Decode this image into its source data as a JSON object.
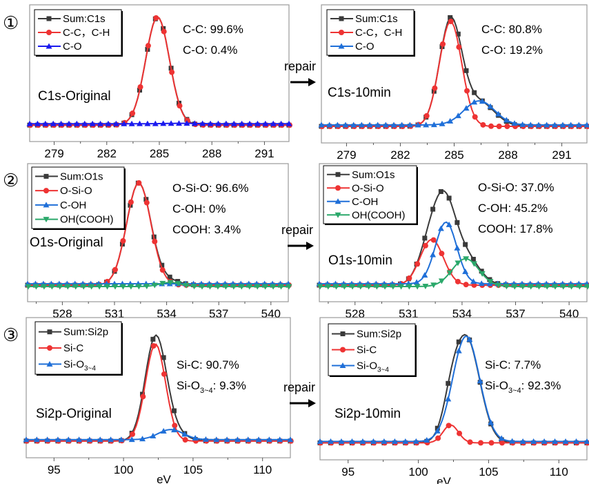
{
  "figure": {
    "arrow_label": "repair",
    "xlabel": "eV",
    "colors": {
      "sum": "#3a3a3a",
      "red": "#ee3333",
      "blue_c1s": "#1a1aee",
      "blue": "#1f6fd8",
      "green": "#2aa86a",
      "frame": "#9a9a9a"
    }
  },
  "chart_data": [
    {
      "id": "c1s-original",
      "row_marker": "①",
      "type": "line",
      "title": "C1s-Original",
      "xlim": [
        277.6,
        292.4
      ],
      "xticks": [
        279,
        282,
        285,
        288,
        291
      ],
      "annotations": [
        "C-C: 99.6%",
        "C-O: 0.4%"
      ],
      "series": [
        {
          "name": "Sum:C1s",
          "marker": "square",
          "color": "sum",
          "peaks": [
            [
              284.9,
              1.0,
              0.68
            ],
            [
              286.3,
              0.004,
              0.8
            ]
          ]
        },
        {
          "name": "C-C，C-H",
          "marker": "circle",
          "color": "red",
          "peaks": [
            [
              284.9,
              1.0,
              0.68
            ]
          ]
        },
        {
          "name": "C-O",
          "marker": "triangle-up",
          "color": "blue_c1s",
          "peaks": [
            [
              286.3,
              0.004,
              0.8
            ]
          ]
        }
      ]
    },
    {
      "id": "c1s-10min",
      "row_marker": "",
      "type": "line",
      "title": "C1s-10min",
      "xlim": [
        277.6,
        292.4
      ],
      "xticks": [
        279,
        282,
        285,
        288,
        291
      ],
      "annotations": [
        "C-C: 80.8%",
        "C-O: 19.2%"
      ],
      "series": [
        {
          "name": "Sum:C1s",
          "marker": "square",
          "color": "sum",
          "peaks": [
            [
              284.8,
              1.0,
              0.62
            ],
            [
              286.4,
              0.23,
              0.85
            ]
          ]
        },
        {
          "name": "C-C，C-H",
          "marker": "circle",
          "color": "red",
          "peaks": [
            [
              284.8,
              1.0,
              0.62
            ]
          ]
        },
        {
          "name": "C-O",
          "marker": "triangle-up",
          "color": "blue",
          "peaks": [
            [
              286.4,
              0.23,
              0.85
            ]
          ]
        }
      ]
    },
    {
      "id": "o1s-original",
      "row_marker": "②",
      "type": "line",
      "title": "O1s-Original",
      "xlim": [
        526.0,
        541.0
      ],
      "xticks": [
        528,
        531,
        534,
        537,
        540
      ],
      "annotations": [
        "O-Si-O: 96.6%",
        "C-OH:   0%",
        "COOH:  3.4%"
      ],
      "series": [
        {
          "name": "Sum:O1s",
          "marker": "square",
          "color": "sum",
          "peaks": [
            [
              532.4,
              1.0,
              0.7
            ],
            [
              534.2,
              0.04,
              0.6
            ]
          ]
        },
        {
          "name": "O-Si-O",
          "marker": "circle",
          "color": "red",
          "peaks": [
            [
              532.4,
              1.0,
              0.7
            ]
          ]
        },
        {
          "name": "C-OH",
          "marker": "triangle-up",
          "color": "blue",
          "peaks": [
            [
              534.1,
              0.0,
              0.5
            ]
          ]
        },
        {
          "name": "OH(COOH)",
          "marker": "triangle-down",
          "color": "green",
          "peaks": [
            [
              534.2,
              0.04,
              0.6
            ]
          ]
        }
      ]
    },
    {
      "id": "o1s-10min",
      "row_marker": "",
      "type": "line",
      "title": "O1s-10min",
      "xlim": [
        526.0,
        541.0
      ],
      "xticks": [
        528,
        531,
        534,
        537,
        540
      ],
      "annotations": [
        "O-Si-O: 37.0%",
        "C-OH:   45.2%",
        "COOH:  17.8%"
      ],
      "series": [
        {
          "name": "Sum:O1s",
          "marker": "square",
          "color": "sum",
          "peaks": [
            [
              532.3,
              0.46,
              0.65
            ],
            [
              533.1,
              0.62,
              0.6
            ],
            [
              534.2,
              0.28,
              0.75
            ]
          ]
        },
        {
          "name": "O-Si-O",
          "marker": "circle",
          "color": "red",
          "peaks": [
            [
              532.3,
              0.46,
              0.65
            ]
          ]
        },
        {
          "name": "C-OH",
          "marker": "triangle-up",
          "color": "blue",
          "peaks": [
            [
              533.1,
              0.62,
              0.6
            ]
          ]
        },
        {
          "name": "OH(COOH)",
          "marker": "triangle-down",
          "color": "green",
          "peaks": [
            [
              534.2,
              0.28,
              0.75
            ]
          ]
        }
      ]
    },
    {
      "id": "si2p-original",
      "row_marker": "③",
      "type": "line",
      "title": "Si2p-Original",
      "xlim": [
        93.0,
        112.0
      ],
      "xticks": [
        95,
        100,
        105,
        110
      ],
      "annotations": [
        "Si-C:  90.7%",
        "Si-O₃₋₄: 9.3%"
      ],
      "series": [
        {
          "name": "Sum:Si2p",
          "marker": "square",
          "color": "sum",
          "peaks": [
            [
              102.3,
              1.0,
              0.75
            ],
            [
              103.4,
              0.1,
              0.9
            ]
          ]
        },
        {
          "name": "Si-C",
          "marker": "circle",
          "color": "red",
          "peaks": [
            [
              102.3,
              0.96,
              0.72
            ]
          ]
        },
        {
          "name": "Si-O3~4",
          "marker": "triangle-up",
          "color": "blue",
          "peaks": [
            [
              103.4,
              0.1,
              0.9
            ]
          ]
        }
      ]
    },
    {
      "id": "si2p-10min",
      "row_marker": "",
      "type": "line",
      "title": "Si2p-10min",
      "xlim": [
        93.0,
        112.0
      ],
      "xticks": [
        95,
        100,
        105,
        110
      ],
      "annotations": [
        "Si-C:  7.7%",
        "Si-O₃₋₄: 92.3%"
      ],
      "series": [
        {
          "name": "Sum:Si2p",
          "marker": "square",
          "color": "sum",
          "peaks": [
            [
              102.3,
              0.17,
              0.55
            ],
            [
              103.4,
              1.0,
              0.95
            ]
          ]
        },
        {
          "name": "Si-C",
          "marker": "circle",
          "color": "red",
          "peaks": [
            [
              102.3,
              0.17,
              0.55
            ]
          ]
        },
        {
          "name": "Si-O3~4",
          "marker": "triangle-up",
          "color": "blue",
          "peaks": [
            [
              103.4,
              1.0,
              0.95
            ]
          ]
        }
      ]
    }
  ]
}
